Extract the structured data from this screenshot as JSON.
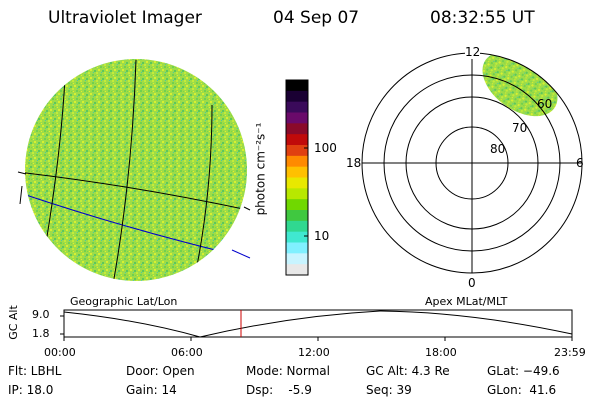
{
  "header": {
    "instrument": "Ultraviolet Imager",
    "date": "04 Sep 07",
    "time": "08:32:55 UT"
  },
  "colorbar": {
    "unit_label": "photon cm⁻²s⁻¹",
    "ticks": [
      "100",
      "10"
    ],
    "scale": "log",
    "colors": [
      "#000000",
      "#1a0033",
      "#3a0a5a",
      "#6a0a6a",
      "#8a0a2a",
      "#c00a0a",
      "#e04010",
      "#ff8a00",
      "#ffc000",
      "#e8e800",
      "#b8e800",
      "#70d800",
      "#40c840",
      "#30d890",
      "#40e8d0",
      "#80f0ff",
      "#c8f4ff",
      "#e8e8e8"
    ]
  },
  "polar_plot": {
    "hour_labels": [
      "12",
      "18",
      "6",
      "0"
    ],
    "lat_labels": [
      "60",
      "70",
      "80"
    ]
  },
  "timeline": {
    "left_label": "Geographic Lat/Lon",
    "right_label": "Apex MLat/MLT",
    "axis_title": "GC Alt",
    "y_ticks": [
      "9.0",
      "1.8"
    ],
    "x_ticks": [
      "00:00",
      "06:00",
      "12:00",
      "18:00",
      "23:59"
    ],
    "current_marker_color": "#cc0000"
  },
  "status": {
    "flt": "Flt: LBHL",
    "ip": "IP: 18.0",
    "door": "Door: Open",
    "gain": "Gain: 14",
    "mode": "Mode: Normal",
    "dsp": "Dsp:    -5.9",
    "gcalt": "GC Alt: 4.3 Re",
    "seq": "Seq: 39",
    "glat": "GLat: −49.6",
    "glon": "GLon:  41.6"
  },
  "colors": {
    "image_base": "#a8e040",
    "grid_line": "#000000",
    "geomag_line": "#0000cc"
  }
}
